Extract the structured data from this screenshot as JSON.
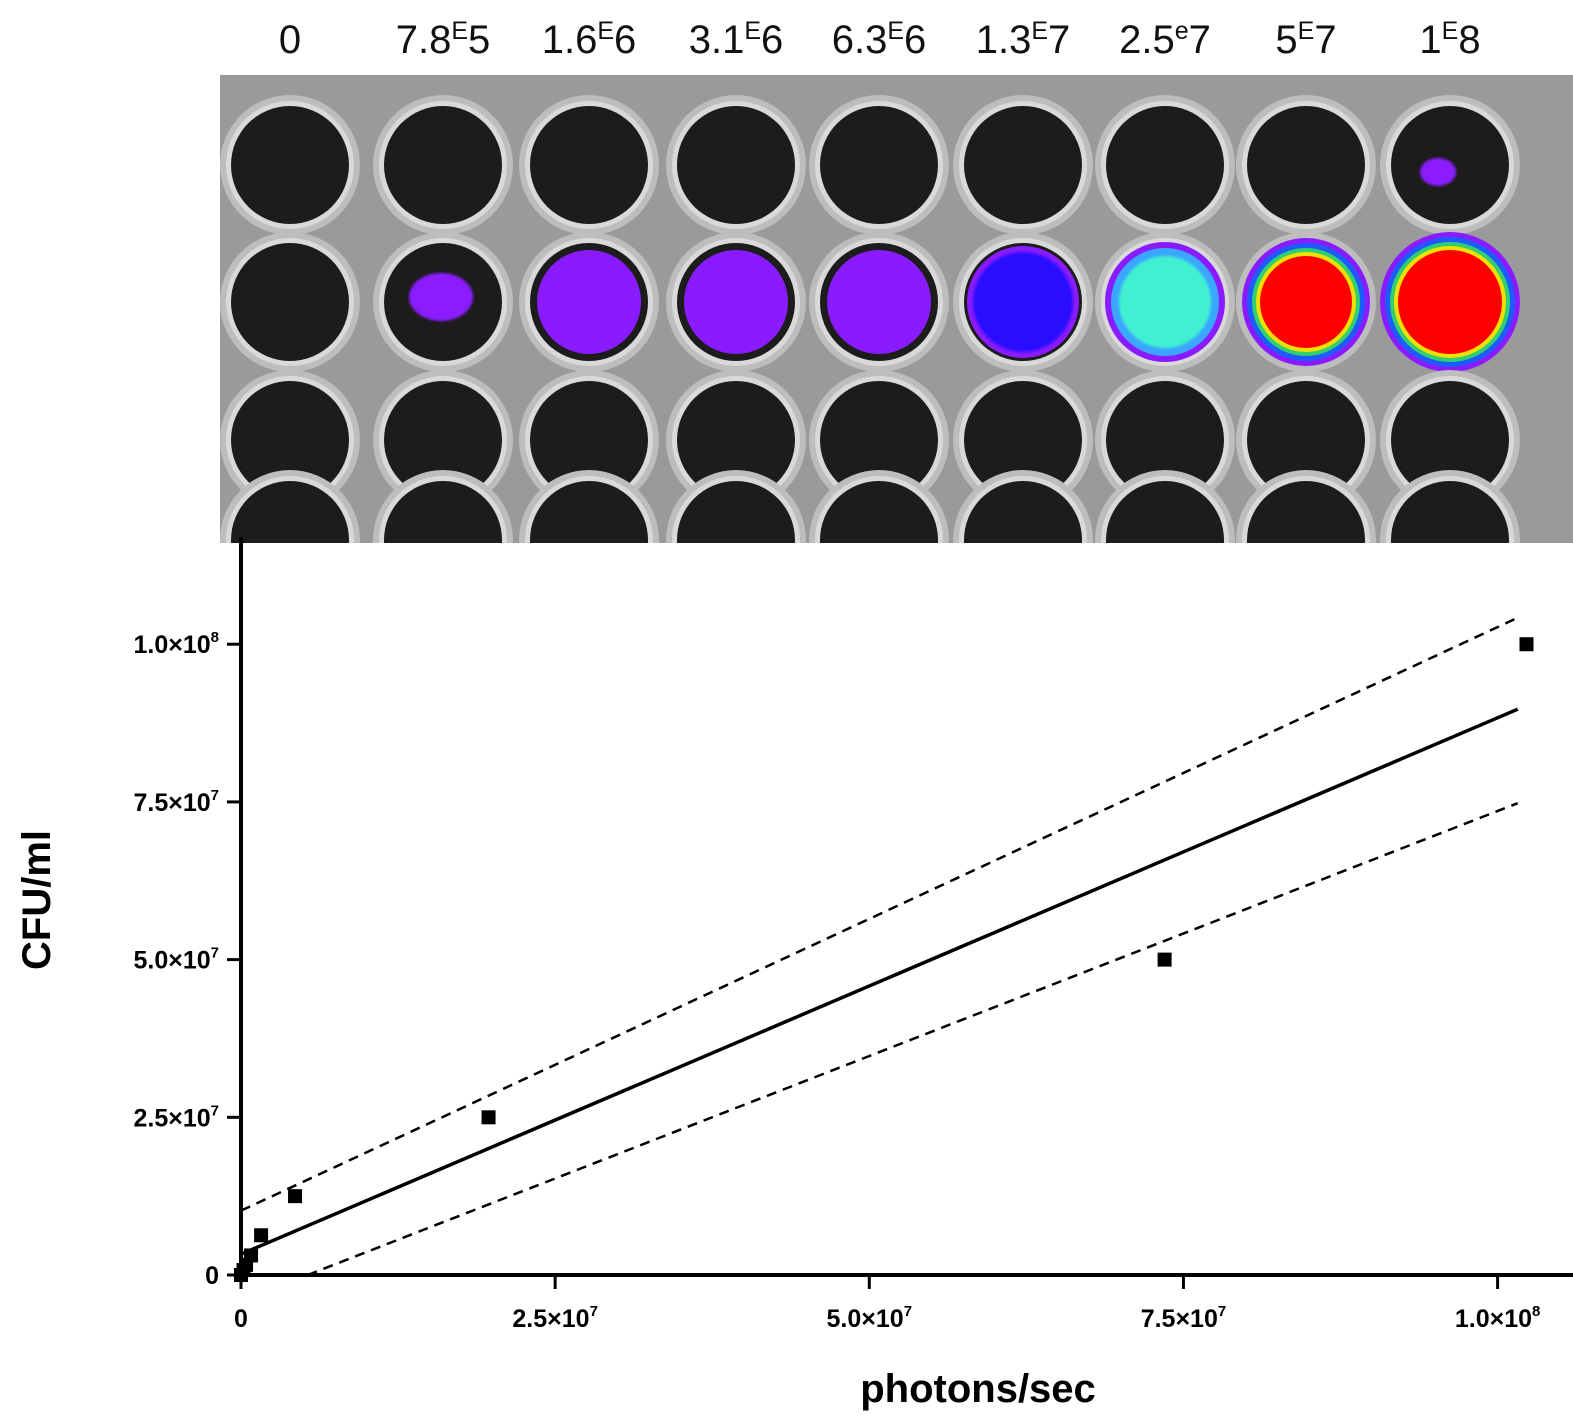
{
  "plate": {
    "concentration_labels": [
      {
        "mantissa": "0",
        "exp_marker": "",
        "exponent": ""
      },
      {
        "mantissa": "7.8",
        "exp_marker": "E",
        "exponent": "5"
      },
      {
        "mantissa": "1.6",
        "exp_marker": "E",
        "exponent": "6"
      },
      {
        "mantissa": "3.1",
        "exp_marker": "E",
        "exponent": "6"
      },
      {
        "mantissa": "6.3",
        "exp_marker": "E",
        "exponent": "6"
      },
      {
        "mantissa": "1.3",
        "exp_marker": "E",
        "exponent": "7"
      },
      {
        "mantissa": "2.5",
        "exp_marker": "e",
        "exponent": "7"
      },
      {
        "mantissa": "5",
        "exp_marker": "E",
        "exponent": "7"
      },
      {
        "mantissa": "1",
        "exp_marker": "E",
        "exponent": "8"
      }
    ],
    "signal_levels": [
      0,
      0.08,
      0.12,
      0.13,
      0.14,
      0.25,
      0.45,
      0.9,
      1.0
    ],
    "colors": {
      "plate_background": "#9a9a9a",
      "well": "#1c1c1c",
      "well_rim": "#d9d9d9",
      "violet": "#8a1bff",
      "blue": "#2a10ff",
      "cyan": "#40f0d0",
      "red": "#ff0000"
    }
  },
  "chart_data": {
    "type": "scatter",
    "xlabel": "photons/sec",
    "ylabel": "CFU/ml",
    "xlim": [
      0,
      106000000
    ],
    "ylim": [
      0,
      117000000
    ],
    "x_ticks": [
      {
        "value": 0,
        "mantissa": "0",
        "exponent": ""
      },
      {
        "value": 25000000,
        "mantissa": "2.5×10",
        "exponent": "7"
      },
      {
        "value": 50000000,
        "mantissa": "5.0×10",
        "exponent": "7"
      },
      {
        "value": 75000000,
        "mantissa": "7.5×10",
        "exponent": "7"
      },
      {
        "value": 100000000,
        "mantissa": "1.0×10",
        "exponent": "8"
      }
    ],
    "y_ticks": [
      {
        "value": 0,
        "mantissa": "0",
        "exponent": ""
      },
      {
        "value": 25000000,
        "mantissa": "2.5×10",
        "exponent": "7"
      },
      {
        "value": 50000000,
        "mantissa": "5.0×10",
        "exponent": "7"
      },
      {
        "value": 75000000,
        "mantissa": "7.5×10",
        "exponent": "7"
      },
      {
        "value": 100000000,
        "mantissa": "1.0×10",
        "exponent": "8"
      }
    ],
    "points": [
      {
        "x": 0,
        "y": 0
      },
      {
        "x": 200000,
        "y": 780000
      },
      {
        "x": 400000,
        "y": 1600000
      },
      {
        "x": 800000,
        "y": 3100000
      },
      {
        "x": 1600000,
        "y": 6300000
      },
      {
        "x": 4300000,
        "y": 12500000
      },
      {
        "x": 19700000,
        "y": 25000000
      },
      {
        "x": 73500000,
        "y": 50000000
      },
      {
        "x": 102300000,
        "y": 100000000
      }
    ],
    "fit_line": [
      {
        "x": 0,
        "y": 3300000
      },
      {
        "x": 101600000,
        "y": 89700000
      }
    ],
    "confidence_band_upper": [
      {
        "x": 0,
        "y": 10200000
      },
      {
        "x": 101600000,
        "y": 104200000
      }
    ],
    "confidence_band_lower": [
      {
        "x": 5300000,
        "y": 0
      },
      {
        "x": 101600000,
        "y": 74800000
      }
    ],
    "grid": false,
    "legend": "none",
    "marker": "square",
    "colors": {
      "axis": "#000000",
      "marker": "#000000",
      "line": "#000000"
    }
  }
}
